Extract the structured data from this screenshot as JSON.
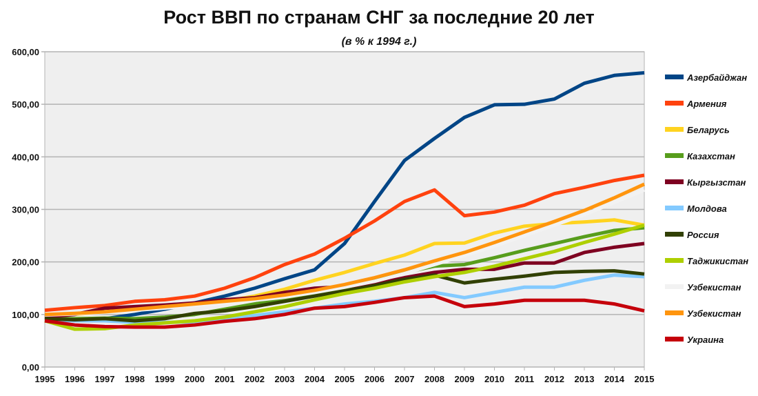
{
  "chart_data": {
    "type": "line",
    "title": "Рост ВВП по странам СНГ за последние 20 лет",
    "subtitle": "(в % к 1994 г.)",
    "x": [
      1995,
      1996,
      1997,
      1998,
      1999,
      2000,
      2001,
      2002,
      2003,
      2004,
      2005,
      2006,
      2007,
      2008,
      2009,
      2010,
      2011,
      2012,
      2013,
      2014,
      2015
    ],
    "ylim": [
      0,
      600
    ],
    "yticks": [
      "0,00",
      "100,00",
      "200,00",
      "300,00",
      "400,00",
      "500,00",
      "600,00"
    ],
    "grid": true,
    "legend": "right",
    "plot_background": "#efefef",
    "series": [
      {
        "name": "Азербайджан",
        "color": "#004586",
        "values": [
          95,
          88,
          92,
          100,
          110,
          122,
          135,
          150,
          168,
          185,
          235,
          315,
          393,
          435,
          475,
          499,
          500,
          510,
          540,
          555,
          560
        ]
      },
      {
        "name": "Армения",
        "color": "#ff420e",
        "values": [
          108,
          113,
          117,
          125,
          128,
          135,
          150,
          170,
          195,
          215,
          245,
          278,
          315,
          337,
          288,
          295,
          308,
          330,
          342,
          355,
          365
        ]
      },
      {
        "name": "Беларусь",
        "color": "#ffd320",
        "values": [
          100,
          100,
          105,
          110,
          115,
          120,
          125,
          135,
          148,
          165,
          180,
          197,
          213,
          235,
          236,
          255,
          268,
          273,
          276,
          280,
          270
        ]
      },
      {
        "name": "Казахстан",
        "color": "#579d1c",
        "values": [
          92,
          92,
          93,
          92,
          95,
          100,
          110,
          120,
          130,
          140,
          150,
          165,
          180,
          192,
          195,
          208,
          222,
          235,
          248,
          260,
          265
        ]
      },
      {
        "name": "Кыргызстан",
        "color": "#7e0021",
        "values": [
          95,
          100,
          112,
          115,
          118,
          122,
          128,
          132,
          142,
          150,
          153,
          158,
          170,
          180,
          186,
          186,
          198,
          198,
          218,
          228,
          235
        ]
      },
      {
        "name": "Молдова",
        "color": "#83caff",
        "values": [
          90,
          88,
          88,
          85,
          85,
          86,
          92,
          98,
          105,
          112,
          120,
          125,
          132,
          142,
          132,
          142,
          152,
          152,
          165,
          175,
          172
        ]
      },
      {
        "name": "Россия",
        "color": "#314004",
        "values": [
          92,
          90,
          92,
          88,
          92,
          102,
          107,
          115,
          125,
          135,
          145,
          155,
          167,
          175,
          160,
          167,
          173,
          180,
          182,
          183,
          177
        ]
      },
      {
        "name": "Таджикистан",
        "color": "#aecf00",
        "values": [
          88,
          72,
          73,
          80,
          84,
          88,
          95,
          105,
          115,
          128,
          140,
          150,
          162,
          172,
          180,
          192,
          206,
          220,
          237,
          253,
          270
        ]
      },
      {
        "name": "Узбекистан",
        "color": "#f2f2f2",
        "values": [
          99,
          101,
          104,
          108,
          112,
          117,
          122,
          127,
          133,
          142,
          152,
          163,
          178,
          195,
          212,
          230,
          250,
          270,
          290,
          313,
          337
        ]
      },
      {
        "name": "Узбекистан",
        "color": "#ff950e",
        "values": [
          100,
          102,
          105,
          110,
          115,
          120,
          125,
          130,
          137,
          146,
          157,
          170,
          185,
          202,
          218,
          237,
          257,
          277,
          298,
          322,
          348
        ]
      },
      {
        "name": "Украина",
        "color": "#c5000b",
        "values": [
          88,
          80,
          77,
          76,
          76,
          80,
          87,
          92,
          100,
          112,
          115,
          123,
          132,
          135,
          115,
          120,
          127,
          127,
          127,
          120,
          107
        ]
      }
    ]
  }
}
